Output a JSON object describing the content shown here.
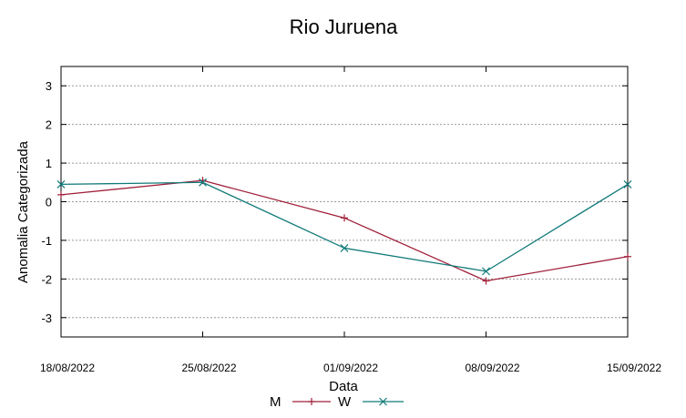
{
  "chart_data": {
    "type": "line",
    "title": "Rio Juruena",
    "xlabel": "Data",
    "ylabel": "Anomalia Categorizada",
    "categories": [
      "18/08/2022",
      "25/08/2022",
      "01/09/2022",
      "08/09/2022",
      "15/09/2022"
    ],
    "yticks": [
      "3",
      "2",
      "1",
      "0",
      "-1",
      "-2",
      "-3"
    ],
    "ylim": [
      -3.5,
      3.5
    ],
    "grid": true,
    "legend_position": "bottom-center",
    "series": [
      {
        "name": "M",
        "color": "#a0203a",
        "marker": "plus",
        "values": [
          0.18,
          0.55,
          -0.42,
          -2.05,
          -1.42
        ]
      },
      {
        "name": "W",
        "color": "#127a7a",
        "marker": "x",
        "values": [
          0.45,
          0.5,
          -1.2,
          -1.8,
          0.45
        ]
      }
    ]
  }
}
